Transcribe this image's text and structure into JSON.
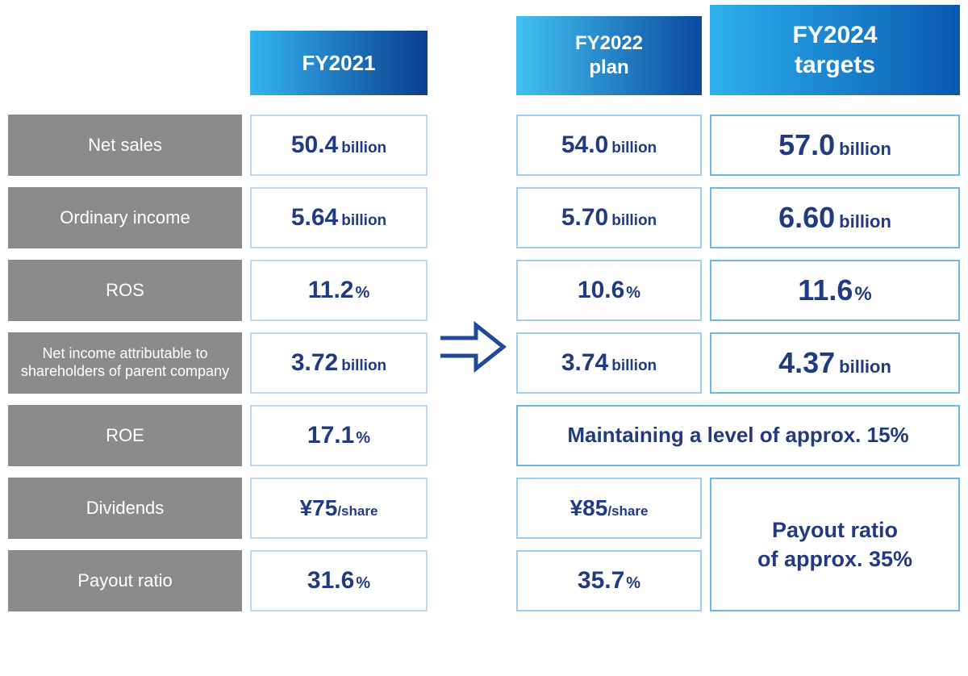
{
  "colors": {
    "label_bg": "#8b8b8b",
    "text_navy": "#213b82",
    "border_2021": "#bfd9f2",
    "border_2022": "#9fcfef",
    "border_2024": "#6fb8e6",
    "hdr_2021_grad_from": "#33b4ef",
    "hdr_2021_grad_to": "#0a3e8e",
    "hdr_2022_grad_from": "#41c1f0",
    "hdr_2022_grad_to": "#0b4aa0",
    "hdr_2024_grad_from": "#2cb1ee",
    "hdr_2024_grad_to": "#0a58b0",
    "arrow_stroke": "#22489c"
  },
  "headers": {
    "fy2021": "FY2021",
    "fy2022_line1": "FY2022",
    "fy2022_line2": "plan",
    "fy2024_line1": "FY2024",
    "fy2024_line2": "targets",
    "font_size_2021": 26,
    "font_size_2022": 24,
    "font_size_2024": 30
  },
  "rows": {
    "net_sales": {
      "label": "Net sales",
      "fy2021_value": "50.4",
      "fy2021_unit": "billion",
      "fy2022_value": "54.0",
      "fy2022_unit": "billion",
      "fy2024_value": "57.0",
      "fy2024_unit": "billion"
    },
    "ordinary_income": {
      "label": "Ordinary income",
      "fy2021_value": "5.64",
      "fy2021_unit": "billion",
      "fy2022_value": "5.70",
      "fy2022_unit": "billion",
      "fy2024_value": "6.60",
      "fy2024_unit": "billion"
    },
    "ros": {
      "label": "ROS",
      "fy2021_value": "11.2",
      "fy2021_unit": "%",
      "fy2022_value": "10.6",
      "fy2022_unit": "%",
      "fy2024_value": "11.6",
      "fy2024_unit": "%"
    },
    "net_income": {
      "label": "Net income attributable to shareholders of parent company",
      "fy2021_value": "3.72",
      "fy2021_unit": "billion",
      "fy2022_value": "3.74",
      "fy2022_unit": "billion",
      "fy2024_value": "4.37",
      "fy2024_unit": "billion"
    },
    "roe": {
      "label": "ROE",
      "fy2021_value": "17.1",
      "fy2021_unit": "%",
      "merged_text": "Maintaining a level of approx. 15%"
    },
    "dividends": {
      "label": "Dividends",
      "fy2021_value": "¥75",
      "fy2021_unit": "/share",
      "fy2022_value": "¥85",
      "fy2022_unit": "/share"
    },
    "payout": {
      "label": "Payout ratio",
      "fy2021_value": "31.6",
      "fy2021_unit": "%",
      "fy2022_value": "35.7",
      "fy2022_unit": "%",
      "merged_2024_line1": "Payout ratio",
      "merged_2024_line2": "of approx. 35%"
    }
  }
}
